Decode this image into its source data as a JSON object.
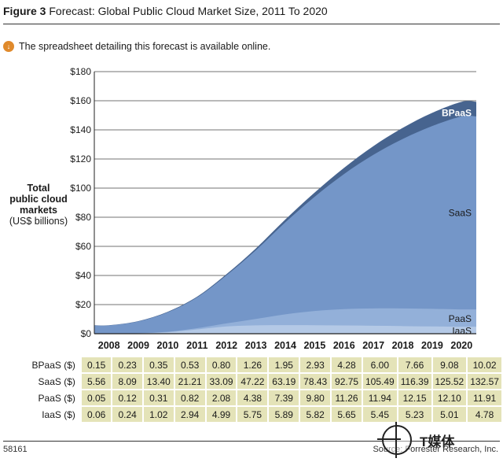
{
  "header": {
    "figure_label": "Figure 3",
    "title": "Forecast: Global Public Cloud Market Size, 2011 To 2020"
  },
  "note": {
    "icon": "spreadsheet-icon",
    "text": "The spreadsheet detailing this forecast is available online."
  },
  "chart_data": {
    "type": "area",
    "stacked": true,
    "title": "Forecast: Global Public Cloud Market Size, 2011 To 2020",
    "ylabel_lines": [
      "Total",
      "public cloud",
      "markets",
      "(US$ billions)"
    ],
    "y_ticks": [
      "$180",
      "$160",
      "$140",
      "$120",
      "$100",
      "$80",
      "$60",
      "$40",
      "$20",
      "$0"
    ],
    "ylim": [
      0,
      180
    ],
    "categories": [
      "2008",
      "2009",
      "2010",
      "2011",
      "2012",
      "2013",
      "2014",
      "2015",
      "2016",
      "2017",
      "2018",
      "2019",
      "2020"
    ],
    "series": [
      {
        "name": "IaaS",
        "color": "#b4c9e6",
        "values": [
          0.06,
          0.24,
          1.02,
          2.94,
          4.99,
          5.75,
          5.89,
          5.82,
          5.65,
          5.45,
          5.23,
          5.01,
          4.78
        ]
      },
      {
        "name": "PaaS",
        "color": "#93b0d9",
        "values": [
          0.05,
          0.12,
          0.31,
          0.82,
          2.08,
          4.38,
          7.39,
          9.8,
          11.26,
          11.94,
          12.15,
          12.1,
          11.91
        ]
      },
      {
        "name": "SaaS",
        "color": "#7496c8",
        "values": [
          5.56,
          8.09,
          13.4,
          21.21,
          33.09,
          47.22,
          63.19,
          78.43,
          92.75,
          105.49,
          116.39,
          125.52,
          132.57
        ]
      },
      {
        "name": "BPaaS",
        "color": "#47648f",
        "values": [
          0.15,
          0.23,
          0.35,
          0.53,
          0.8,
          1.26,
          1.95,
          2.93,
          4.28,
          6.0,
          7.66,
          9.08,
          10.02
        ]
      }
    ],
    "grid": true,
    "table_rows": [
      {
        "label": "BPaaS ($)",
        "values": [
          "0.15",
          "0.23",
          "0.35",
          "0.53",
          "0.80",
          "1.26",
          "1.95",
          "2.93",
          "4.28",
          "6.00",
          "7.66",
          "9.08",
          "10.02"
        ]
      },
      {
        "label": "SaaS ($)",
        "values": [
          "5.56",
          "8.09",
          "13.40",
          "21.21",
          "33.09",
          "47.22",
          "63.19",
          "78.43",
          "92.75",
          "105.49",
          "116.39",
          "125.52",
          "132.57"
        ]
      },
      {
        "label": "PaaS ($)",
        "values": [
          "0.05",
          "0.12",
          "0.31",
          "0.82",
          "2.08",
          "4.38",
          "7.39",
          "9.80",
          "11.26",
          "11.94",
          "12.15",
          "12.10",
          "11.91"
        ]
      },
      {
        "label": "IaaS ($)",
        "values": [
          "0.06",
          "0.24",
          "1.02",
          "2.94",
          "4.99",
          "5.75",
          "5.89",
          "5.82",
          "5.65",
          "5.45",
          "5.23",
          "5.01",
          "4.78"
        ]
      }
    ]
  },
  "footer": {
    "doc_id": "58161",
    "source": "Source: Forrester Research, Inc."
  },
  "watermark": {
    "text": "T媒体"
  }
}
